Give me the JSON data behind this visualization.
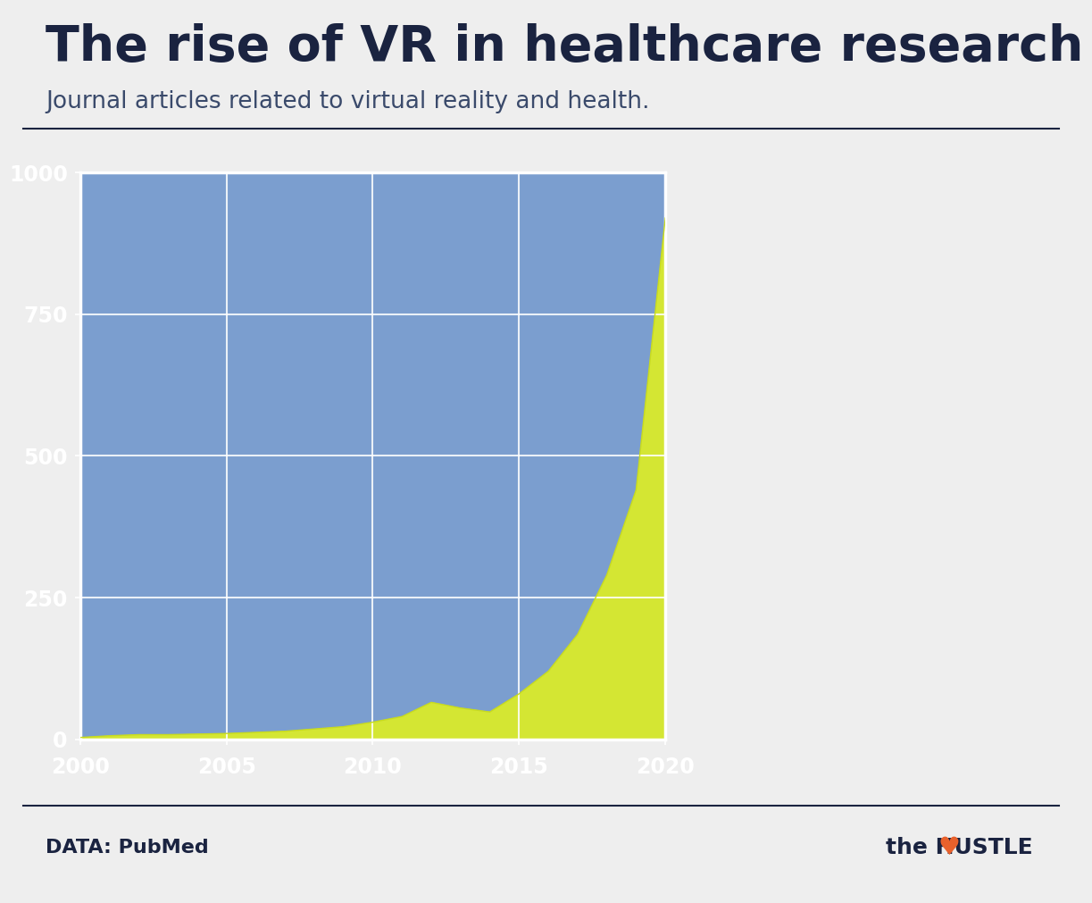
{
  "title": "The rise of VR in healthcare research",
  "subtitle": "Journal articles related to virtual reality and health.",
  "source": "DATA: PubMed",
  "brand": "the HUSTLE",
  "bg_color": "#eeeeee",
  "chart_bg_color": "#7b9ecf",
  "fill_color": "#d4e633",
  "line_color": "#c8db1e",
  "grid_color": "#ffffff",
  "title_color": "#1a2340",
  "subtitle_color": "#3a4a6b",
  "axis_label_color": "#ffffff",
  "years": [
    2000,
    2001,
    2002,
    2003,
    2004,
    2005,
    2006,
    2007,
    2008,
    2009,
    2010,
    2011,
    2012,
    2013,
    2014,
    2015,
    2016,
    2017,
    2018,
    2019,
    2020
  ],
  "values": [
    3,
    6,
    8,
    8,
    9,
    10,
    12,
    14,
    18,
    22,
    30,
    40,
    65,
    55,
    48,
    80,
    120,
    185,
    290,
    440,
    920
  ],
  "ylim": [
    0,
    1000
  ],
  "yticks": [
    0,
    250,
    500,
    750,
    1000
  ],
  "xticks": [
    2000,
    2005,
    2010,
    2015,
    2020
  ],
  "tick_fontsize": 17,
  "title_fontsize": 40,
  "subtitle_fontsize": 19,
  "footer_fontsize": 16
}
